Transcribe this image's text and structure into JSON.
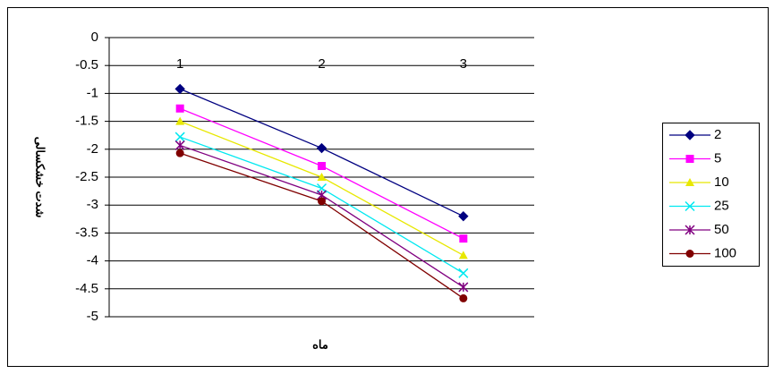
{
  "chart_data": {
    "type": "line",
    "x_label": "ماه",
    "y_label": "شدت خشکسالی",
    "categories": [
      "1",
      "2",
      "3"
    ],
    "ylim": [
      -5,
      0
    ],
    "yticks": [
      0,
      -0.5,
      -1,
      -1.5,
      -2,
      -2.5,
      -3,
      -3.5,
      -4,
      -4.5,
      -5
    ],
    "grid": true,
    "legend": "right",
    "series": [
      {
        "name": "2",
        "color": "#000080",
        "marker": "diamond",
        "values": [
          -0.92,
          -1.98,
          -3.2
        ]
      },
      {
        "name": "5",
        "color": "#ff00ff",
        "marker": "square",
        "values": [
          -1.27,
          -2.3,
          -3.6
        ]
      },
      {
        "name": "10",
        "color": "#e8e800",
        "marker": "triangle",
        "values": [
          -1.5,
          -2.5,
          -3.9
        ]
      },
      {
        "name": "25",
        "color": "#00e8f0",
        "marker": "x",
        "values": [
          -1.78,
          -2.7,
          -4.22
        ]
      },
      {
        "name": "50",
        "color": "#800080",
        "marker": "star",
        "values": [
          -1.93,
          -2.82,
          -4.47
        ]
      },
      {
        "name": "100",
        "color": "#800000",
        "marker": "circle",
        "values": [
          -2.07,
          -2.93,
          -4.67
        ]
      }
    ]
  }
}
